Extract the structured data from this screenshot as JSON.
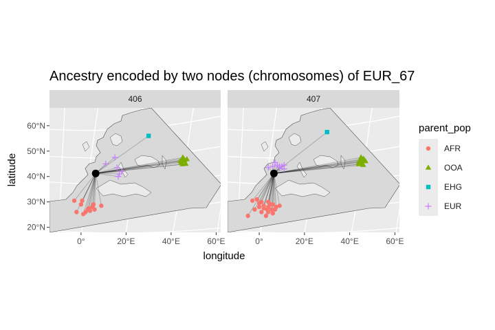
{
  "chart_data": {
    "type": "scatter",
    "title": "Ancestry encoded by two nodes (chromosomes) of EUR_67",
    "xlabel": "longitude",
    "ylabel": "latitude",
    "x_ticks": [
      {
        "value": 0,
        "label": "0°"
      },
      {
        "value": 20,
        "label": "20°E"
      },
      {
        "value": 40,
        "label": "40°E"
      },
      {
        "value": 60,
        "label": "60°E"
      }
    ],
    "y_ticks": [
      {
        "value": 20,
        "label": "20°N"
      },
      {
        "value": 30,
        "label": "30°N"
      },
      {
        "value": 40,
        "label": "40°N"
      },
      {
        "value": 50,
        "label": "50°N"
      },
      {
        "value": 60,
        "label": "60°N"
      }
    ],
    "xlim": [
      -14,
      62
    ],
    "ylim": [
      18,
      67
    ],
    "grid": true,
    "legend": {
      "title": "parent_pop",
      "position": "right",
      "entries": [
        {
          "name": "AFR",
          "color": "#F8766D",
          "shape": "circle"
        },
        {
          "name": "OOA",
          "color": "#7CAE00",
          "shape": "triangle"
        },
        {
          "name": "EHG",
          "color": "#00BFC4",
          "shape": "square"
        },
        {
          "name": "EUR",
          "color": "#C77CFF",
          "shape": "plus"
        }
      ]
    },
    "focal_point": {
      "x": 6.5,
      "y": 41.2,
      "color": "#000000"
    },
    "panels": [
      {
        "strip": "406",
        "series": [
          {
            "name": "AFR",
            "points": [
              [
                -3,
                30.5
              ],
              [
                -2,
                26
              ],
              [
                0,
                29
              ],
              [
                0.5,
                30.5
              ],
              [
                1,
                25.2
              ],
              [
                2,
                26
              ],
              [
                3,
                27
              ],
              [
                3.5,
                27.5
              ],
              [
                4,
                26.5
              ],
              [
                5,
                28
              ],
              [
                6,
                27
              ],
              [
                5.5,
                29
              ],
              [
                9,
                28.5
              ]
            ]
          },
          {
            "name": "OOA",
            "points": [
              [
                44,
                46
              ],
              [
                45,
                47
              ],
              [
                46,
                46.5
              ],
              [
                44.5,
                45.5
              ],
              [
                45.5,
                46
              ],
              [
                46.5,
                45
              ],
              [
                45,
                44.8
              ],
              [
                47,
                46.8
              ],
              [
                45.2,
                47.5
              ]
            ]
          },
          {
            "name": "EHG",
            "points": [
              [
                30,
                56
              ]
            ]
          },
          {
            "name": "EUR",
            "points": [
              [
                11,
                45
              ],
              [
                15,
                47.5
              ],
              [
                17,
                41
              ],
              [
                16.5,
                40
              ],
              [
                18,
                42
              ],
              [
                16,
                43.5
              ]
            ]
          }
        ]
      },
      {
        "strip": "407",
        "series": [
          {
            "name": "AFR",
            "points": [
              [
                -5,
                24.5
              ],
              [
                -3,
                30.5
              ],
              [
                -2,
                27
              ],
              [
                -1,
                31
              ],
              [
                0,
                28
              ],
              [
                0,
                29.5
              ],
              [
                1,
                30
              ],
              [
                1,
                26
              ],
              [
                2,
                28.5
              ],
              [
                2,
                27.5
              ],
              [
                3,
                24.5
              ],
              [
                3.5,
                27
              ],
              [
                4,
                26
              ],
              [
                4,
                28
              ],
              [
                4,
                30
              ],
              [
                5,
                29
              ],
              [
                5.5,
                27
              ],
              [
                6,
                25.5
              ],
              [
                6,
                29
              ],
              [
                7,
                27
              ],
              [
                7.5,
                28
              ],
              [
                9,
                28.5
              ]
            ]
          },
          {
            "name": "OOA",
            "points": [
              [
                44,
                45.5
              ],
              [
                45,
                46
              ],
              [
                46,
                47
              ],
              [
                44.5,
                46.5
              ],
              [
                45.5,
                45
              ],
              [
                46.5,
                46.5
              ],
              [
                44,
                44.8
              ],
              [
                45,
                47.5
              ],
              [
                46,
                44.5
              ],
              [
                47,
                46
              ]
            ]
          },
          {
            "name": "EHG",
            "points": [
              [
                30,
                57.5
              ]
            ]
          },
          {
            "name": "EUR",
            "points": [
              [
                4,
                43.5
              ],
              [
                6,
                44
              ],
              [
                7,
                45.5
              ],
              [
                8,
                44.5
              ],
              [
                9,
                44
              ],
              [
                9,
                43.5
              ],
              [
                10,
                44
              ],
              [
                11,
                43
              ],
              [
                11,
                44.5
              ]
            ]
          }
        ]
      }
    ]
  }
}
